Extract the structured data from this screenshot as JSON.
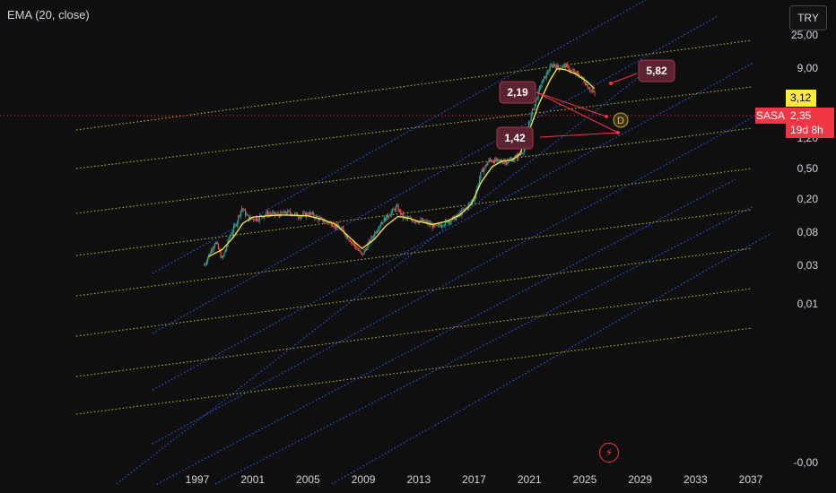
{
  "indicator_label": "EMA (20, close)",
  "currency_button": "TRY",
  "symbol": "SASA",
  "ema_value": "3,12",
  "last_price": "2,35",
  "countdown": "19d 8h",
  "marker_letter": "D",
  "lightning_glyph": "⚡",
  "colors": {
    "background": "#0f0f0f",
    "candle_up": "#26a69a",
    "candle_down": "#ef5350",
    "ema": "#ffeb3b",
    "channel_yellow": "#d4c21f",
    "channel_blue": "#2962ff",
    "price_line": "#f23645",
    "annotation_box": "#5b2232",
    "annotation_border": "#a83a52",
    "marker": "#c9a227"
  },
  "chart_data": {
    "type": "candlestick",
    "y_scale": "log",
    "y_tick_labels": [
      "25,00",
      "9,00",
      "1,20",
      "0,50",
      "0,20",
      "0,08",
      "0,03",
      "0,01",
      "-0,00"
    ],
    "x_tick_labels": [
      "1997",
      "2001",
      "2005",
      "2009",
      "2013",
      "2017",
      "2021",
      "2025",
      "2029",
      "2033",
      "2037"
    ],
    "x_range": [
      1997,
      2037
    ],
    "series": [
      {
        "name": "EMA (20, close)",
        "kind": "line",
        "points": [
          [
            1997.8,
            0.0016
          ],
          [
            1998.8,
            0.0022
          ],
          [
            1999.6,
            0.0038
          ],
          [
            2000.3,
            0.0072
          ],
          [
            2001.0,
            0.0095
          ],
          [
            2002.0,
            0.01
          ],
          [
            2003.0,
            0.0104
          ],
          [
            2004.0,
            0.0103
          ],
          [
            2005.0,
            0.01
          ],
          [
            2006.0,
            0.0086
          ],
          [
            2007.0,
            0.0068
          ],
          [
            2008.0,
            0.0038
          ],
          [
            2008.9,
            0.0023
          ],
          [
            2009.8,
            0.0035
          ],
          [
            2010.6,
            0.0063
          ],
          [
            2011.5,
            0.0098
          ],
          [
            2012.2,
            0.0092
          ],
          [
            2013.0,
            0.0078
          ],
          [
            2014.0,
            0.0068
          ],
          [
            2015.0,
            0.0078
          ],
          [
            2016.0,
            0.0105
          ],
          [
            2016.8,
            0.017
          ],
          [
            2017.5,
            0.045
          ],
          [
            2018.3,
            0.092
          ],
          [
            2019.0,
            0.118
          ],
          [
            2019.7,
            0.123
          ],
          [
            2020.3,
            0.16
          ],
          [
            2021.0,
            0.48
          ],
          [
            2021.7,
            1.6
          ],
          [
            2022.5,
            4.6
          ],
          [
            2023.0,
            7.6
          ],
          [
            2023.6,
            7.3
          ],
          [
            2024.4,
            5.9
          ],
          [
            2025.1,
            4.4
          ],
          [
            2025.7,
            3.12
          ]
        ]
      },
      {
        "name": "",
        "kind": "candles",
        "anchors": [
          [
            1997.5,
            0.0011
          ],
          [
            1997.9,
            0.0019
          ],
          [
            1998.3,
            0.0032
          ],
          [
            1998.8,
            0.0014
          ],
          [
            1999.3,
            0.0038
          ],
          [
            1999.8,
            0.0072
          ],
          [
            2000.2,
            0.0145
          ],
          [
            2000.7,
            0.009
          ],
          [
            2001.3,
            0.0088
          ],
          [
            2002.0,
            0.0112
          ],
          [
            2002.8,
            0.0105
          ],
          [
            2003.6,
            0.0118
          ],
          [
            2004.4,
            0.01
          ],
          [
            2005.1,
            0.0112
          ],
          [
            2005.9,
            0.0085
          ],
          [
            2006.7,
            0.0072
          ],
          [
            2007.5,
            0.0052
          ],
          [
            2008.2,
            0.003
          ],
          [
            2008.9,
            0.0017
          ],
          [
            2009.5,
            0.0033
          ],
          [
            2010.2,
            0.007
          ],
          [
            2010.9,
            0.011
          ],
          [
            2011.4,
            0.015
          ],
          [
            2011.9,
            0.0092
          ],
          [
            2012.6,
            0.0082
          ],
          [
            2013.4,
            0.0078
          ],
          [
            2014.2,
            0.006
          ],
          [
            2014.9,
            0.0075
          ],
          [
            2015.7,
            0.0095
          ],
          [
            2016.4,
            0.014
          ],
          [
            2017.0,
            0.022
          ],
          [
            2017.5,
            0.07
          ],
          [
            2018.1,
            0.125
          ],
          [
            2018.8,
            0.115
          ],
          [
            2019.5,
            0.118
          ],
          [
            2020.1,
            0.145
          ],
          [
            2020.6,
            0.2
          ],
          [
            2021.0,
            0.75
          ],
          [
            2021.4,
            1.6
          ],
          [
            2021.8,
            3.6
          ],
          [
            2022.3,
            6.5
          ],
          [
            2022.7,
            9.5
          ],
          [
            2023.1,
            8.0
          ],
          [
            2023.6,
            8.8
          ],
          [
            2024.1,
            6.6
          ],
          [
            2024.6,
            5.6
          ],
          [
            2025.0,
            4.2
          ],
          [
            2025.4,
            3.0
          ],
          [
            2025.8,
            2.35
          ]
        ]
      }
    ],
    "annotations": [
      {
        "label": "5,82",
        "target": [
          2026.9,
          5.82
        ]
      },
      {
        "label": "2,19",
        "target": [
          2025.7,
          2.19
        ]
      },
      {
        "label": "1,42",
        "target": [
          2027.3,
          1.42
        ]
      }
    ],
    "current_price": 2.35,
    "ema_last": 3.12
  }
}
